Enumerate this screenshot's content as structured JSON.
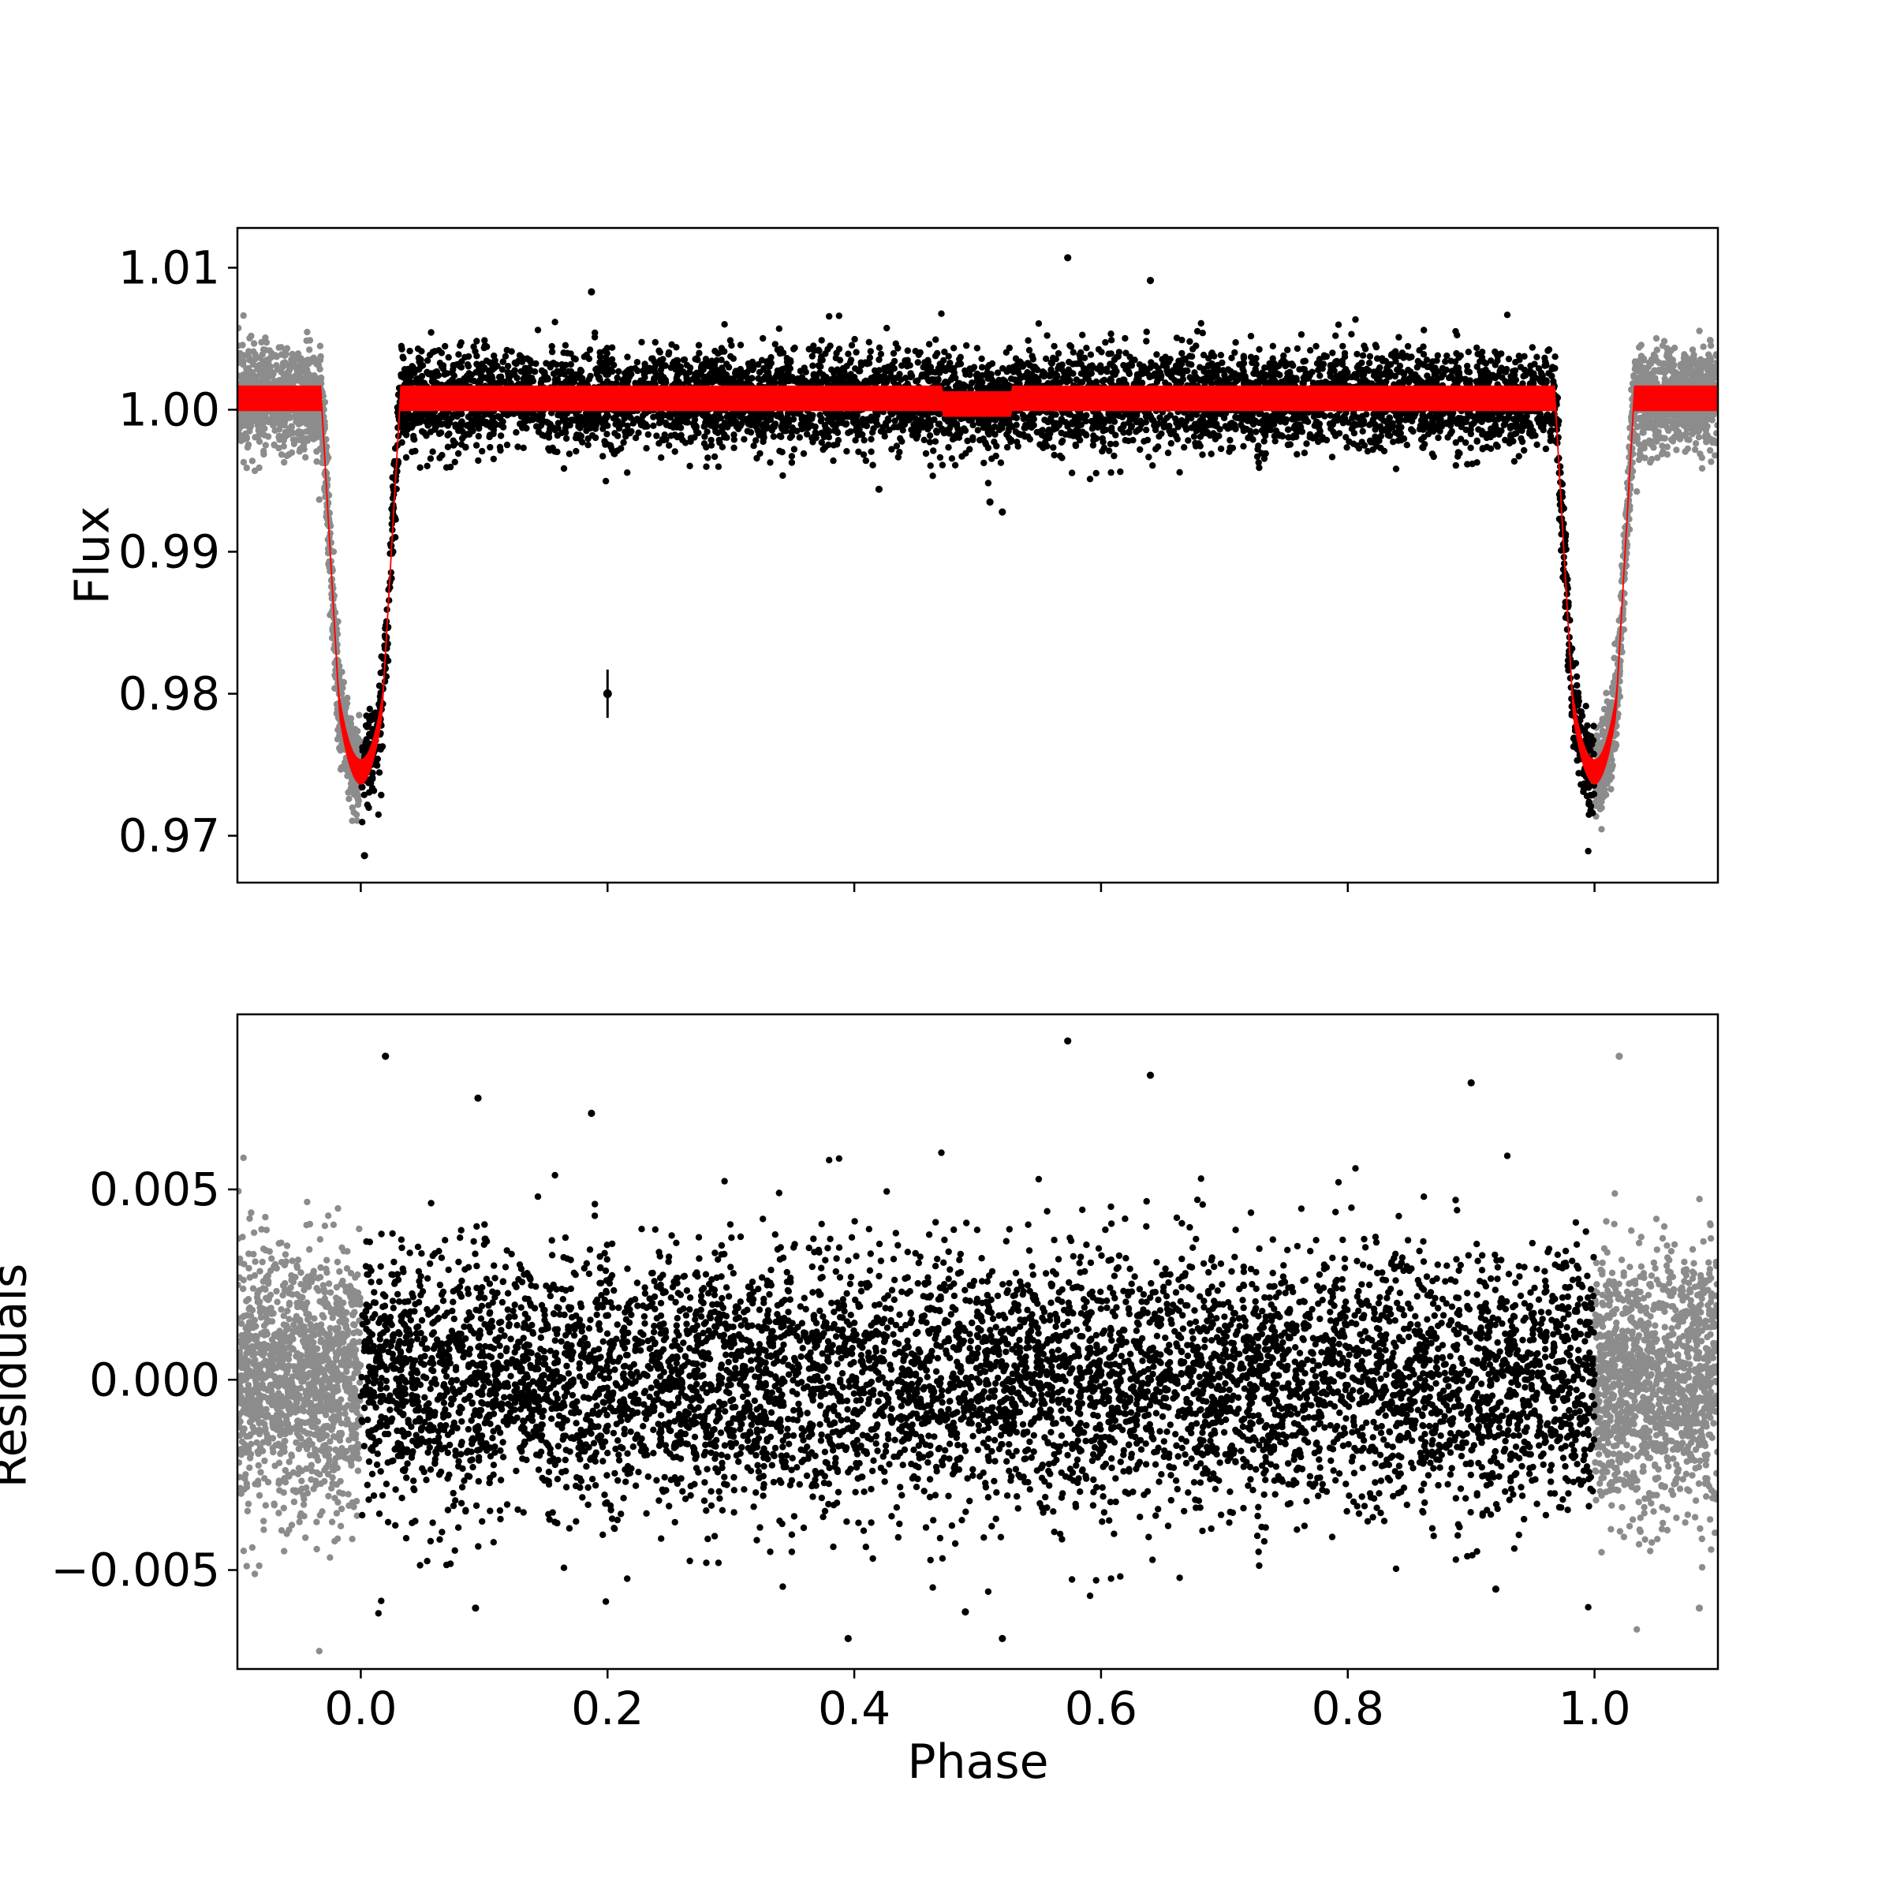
{
  "chart_data": [
    {
      "type": "scatter",
      "panel": "flux",
      "xlabel": "",
      "ylabel": "Flux",
      "xlim": [
        -0.1,
        1.1
      ],
      "ylim": [
        0.9667,
        1.0128
      ],
      "xticks": [
        0.0,
        0.2,
        0.4,
        0.6,
        0.8,
        1.0
      ],
      "yticks": [
        0.97,
        0.98,
        0.99,
        1.0,
        1.01
      ],
      "ytick_labels": [
        "0.97",
        "0.98",
        "0.99",
        "1.00",
        "1.01"
      ],
      "model": {
        "baseline_in": 1.0008,
        "baseline_out": 1.0008,
        "transit_depth_min": 0.9745,
        "transit_phases": [
          0.0,
          1.0
        ],
        "transit_half_width": 0.032,
        "secondary_eclipse_center": 0.5,
        "secondary_eclipse_depth": 0.0004,
        "band_halfwidth": 0.0009
      },
      "scatter_sigma": 0.0017,
      "binned_point": {
        "x": 0.2,
        "y": 0.98,
        "yerr": 0.0017
      },
      "outliers": [
        {
          "x": 0.573,
          "y": 1.0107
        },
        {
          "x": 0.187,
          "y": 1.0083
        },
        {
          "x": 0.64,
          "y": 1.0091
        },
        {
          "x": 0.51,
          "y": 0.9935
        },
        {
          "x": 0.52,
          "y": 0.9928
        },
        {
          "x": 0.42,
          "y": 0.9944
        },
        {
          "x": 0.003,
          "y": 0.9686
        }
      ],
      "colors": {
        "in_range": "#000000",
        "out_of_range": "#8c8c8c",
        "model": "#ff0000"
      }
    },
    {
      "type": "scatter",
      "panel": "residuals",
      "xlabel": "Phase",
      "ylabel": "Residuals",
      "xlim": [
        -0.1,
        1.1
      ],
      "ylim": [
        -0.0076,
        0.0096
      ],
      "xticks": [
        0.0,
        0.2,
        0.4,
        0.6,
        0.8,
        1.0
      ],
      "xtick_labels": [
        "0.0",
        "0.2",
        "0.4",
        "0.6",
        "0.8",
        "1.0"
      ],
      "yticks": [
        -0.005,
        0.0,
        0.005
      ],
      "ytick_labels": [
        "−0.005",
        "0.000",
        "0.005"
      ],
      "scatter_sigma": 0.0017,
      "outliers": [
        {
          "x": 0.02,
          "y": 0.0085
        },
        {
          "x": 0.573,
          "y": 0.0089
        },
        {
          "x": 0.64,
          "y": 0.008
        },
        {
          "x": 0.095,
          "y": 0.0074
        },
        {
          "x": 0.9,
          "y": 0.0078
        },
        {
          "x": 0.187,
          "y": 0.007
        },
        {
          "x": 0.395,
          "y": -0.0068
        },
        {
          "x": 0.52,
          "y": -0.0068
        },
        {
          "x": 0.49,
          "y": -0.0061
        },
        {
          "x": 0.093,
          "y": -0.006
        },
        {
          "x": 0.92,
          "y": -0.0055
        },
        {
          "x": 1.02,
          "y": 0.0085
        },
        {
          "x": 1.085,
          "y": -0.006
        }
      ],
      "colors": {
        "in_range": "#000000",
        "out_of_range": "#8c8c8c"
      }
    }
  ]
}
